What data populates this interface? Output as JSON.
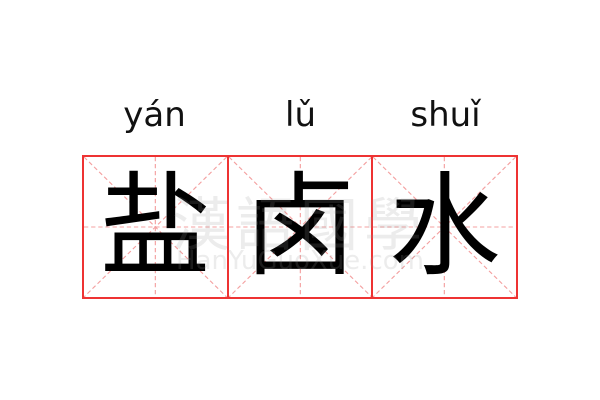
{
  "characters": [
    {
      "hanzi": "盐",
      "pinyin": "yán"
    },
    {
      "hanzi": "卤",
      "pinyin": "lǔ"
    },
    {
      "hanzi": "水",
      "pinyin": "shuǐ"
    }
  ],
  "watermark": {
    "logo_text": "漢語國學",
    "site": "HanYuGuoXue.com"
  },
  "colors": {
    "grid_border": "#ee3333",
    "guide_lines": "#f4a0a0",
    "text": "#000000"
  }
}
